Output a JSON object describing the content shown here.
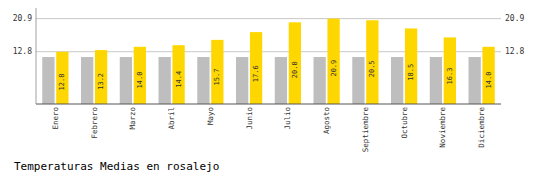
{
  "chart_data": {
    "type": "bar",
    "title": "Temperaturas Medias en rosalejo",
    "categories": [
      "Enero",
      "Febrero",
      "Marzo",
      "Abril",
      "Mayo",
      "Junio",
      "Julio",
      "Agosto",
      "Septiembre",
      "Octubre",
      "Noviembre",
      "Diciembre"
    ],
    "series": [
      {
        "color": "#BEBEBE",
        "values": [
          11.5,
          11.5,
          11.5,
          11.5,
          11.5,
          11.5,
          11.5,
          11.5,
          11.5,
          11.5,
          11.5,
          11.5
        ]
      },
      {
        "color": "#FFD700",
        "values": [
          12.8,
          13.2,
          14.0,
          14.4,
          15.7,
          17.6,
          20.0,
          20.9,
          20.5,
          18.5,
          16.3,
          14.0
        ],
        "data_labels": true,
        "value_labels": [
          "12.8",
          "13.2",
          "14.0",
          "14.4",
          "15.7",
          "17.6",
          "20.0",
          "20.9",
          "20.5",
          "18.5",
          "16.3",
          "14.0"
        ]
      }
    ],
    "ylim": [
      0,
      23.5
    ],
    "yticks": [
      12.8,
      20.9
    ],
    "grid": true
  }
}
